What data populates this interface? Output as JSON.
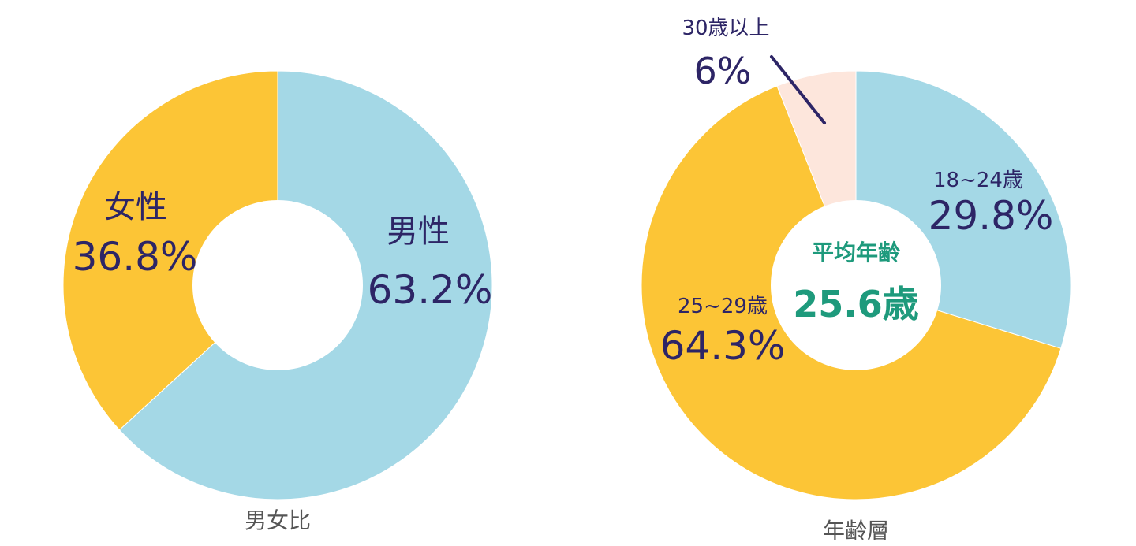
{
  "chart_data": [
    {
      "type": "pie",
      "title": "男女比",
      "slices": [
        {
          "label": "男性",
          "value": 63.2,
          "display": "63.2%",
          "color": "#a4d8e6"
        },
        {
          "label": "女性",
          "value": 36.8,
          "display": "36.8%",
          "color": "#fcc536"
        }
      ]
    },
    {
      "type": "pie",
      "title": "年齢層",
      "center_label": "平均年齢",
      "center_value": "25.6歳",
      "slices": [
        {
          "label": "18~24歳",
          "value": 29.8,
          "display": "29.8%",
          "color": "#a4d8e6"
        },
        {
          "label": "25~29歳",
          "value": 64.3,
          "display": "64.3%",
          "color": "#fcc536"
        },
        {
          "label": "30歳以上",
          "value": 6,
          "display": "6%",
          "color": "#fde6dc"
        }
      ]
    }
  ],
  "colors": {
    "label_text": "#2d2566",
    "center_accent": "#1e9a7c",
    "title_text": "#555555"
  }
}
